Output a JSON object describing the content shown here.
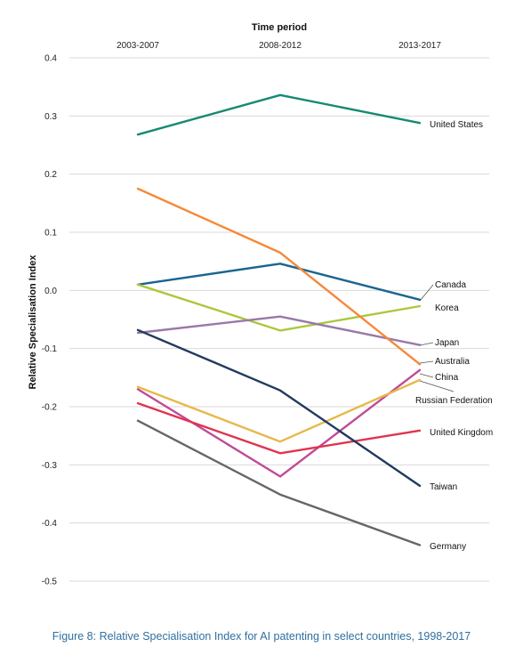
{
  "chart_data": {
    "type": "line",
    "title": "",
    "xlabel": "Time period",
    "ylabel": "Relative Specialisation Index",
    "categories": [
      "2003-2007",
      "2008-2012",
      "2013-2017"
    ],
    "ylim": [
      -0.5,
      0.4
    ],
    "yticks": [
      0.4,
      0.3,
      0.2,
      0.1,
      0.0,
      -0.1,
      -0.2,
      -0.3,
      -0.4,
      -0.5
    ],
    "ytick_labels": [
      "0.4",
      "0.3",
      "0.2",
      "0.1",
      "0.0",
      "-0.1",
      "-0.2",
      "-0.3",
      "-0.4",
      "-0.5"
    ],
    "grid": true,
    "legend": "direct labels at line ends",
    "series": [
      {
        "name": "United States",
        "values": [
          0.268,
          0.336,
          0.288
        ],
        "color": "#168a74"
      },
      {
        "name": "Canada",
        "values": [
          0.01,
          0.046,
          -0.016
        ],
        "color": "#1a6590"
      },
      {
        "name": "Korea",
        "values": [
          0.01,
          -0.069,
          -0.027
        ],
        "color": "#adc73f"
      },
      {
        "name": "Japan",
        "values": [
          -0.073,
          -0.045,
          -0.094
        ],
        "color": "#9878a8"
      },
      {
        "name": "Australia",
        "values": [
          0.175,
          0.065,
          -0.127
        ],
        "color": "#f5893a"
      },
      {
        "name": "China",
        "values": [
          -0.17,
          -0.32,
          -0.137
        ],
        "color": "#c04a96"
      },
      {
        "name": "Russian Federation",
        "values": [
          -0.166,
          -0.26,
          -0.154
        ],
        "color": "#e6b94c"
      },
      {
        "name": "United Kingdom",
        "values": [
          -0.194,
          -0.28,
          -0.241
        ],
        "color": "#e0344f"
      },
      {
        "name": "Taiwan",
        "values": [
          -0.068,
          -0.172,
          -0.336
        ],
        "color": "#223a5e"
      },
      {
        "name": "Germany",
        "values": [
          -0.224,
          -0.351,
          -0.438
        ],
        "color": "#666666"
      }
    ]
  },
  "caption": "Figure 8: Relative Specialisation Index for AI patenting in select countries, 1998-2017"
}
